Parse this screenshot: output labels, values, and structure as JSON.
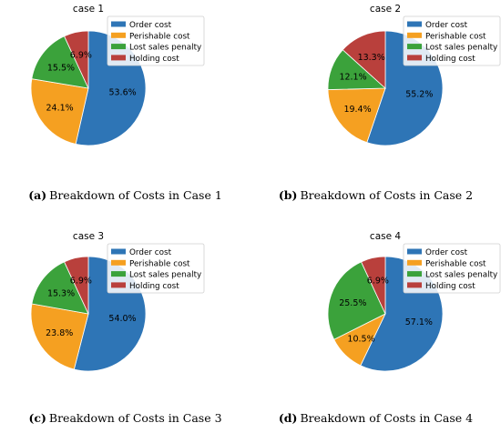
{
  "legend": [
    "Order cost",
    "Perishable cost",
    "Lost sales penalty",
    "Holding cost"
  ],
  "colors": {
    "order": "#2e75b6",
    "perishable": "#f5a021",
    "lost_sales": "#3ba23b",
    "holding": "#b9403c"
  },
  "chart_data": [
    {
      "type": "pie",
      "title": "case 1",
      "labels": [
        "Order cost",
        "Perishable cost",
        "Lost sales penalty",
        "Holding cost"
      ],
      "values": [
        53.6,
        24.1,
        15.5,
        6.9
      ],
      "value_labels": [
        "53.6%",
        "24.1%",
        "15.5%",
        "6.9%"
      ],
      "legend_position": "top-right"
    },
    {
      "type": "pie",
      "title": "case 2",
      "labels": [
        "Order cost",
        "Perishable cost",
        "Lost sales penalty",
        "Holding cost"
      ],
      "values": [
        55.2,
        19.4,
        12.1,
        13.3
      ],
      "value_labels": [
        "55.2%",
        "19.4%",
        "12.1%",
        "13.3%"
      ],
      "legend_position": "top-right"
    },
    {
      "type": "pie",
      "title": "case 3",
      "labels": [
        "Order cost",
        "Perishable cost",
        "Lost sales penalty",
        "Holding cost"
      ],
      "values": [
        54.0,
        23.8,
        15.3,
        6.9
      ],
      "value_labels": [
        "54.0%",
        "23.8%",
        "15.3%",
        "6.9%"
      ],
      "legend_position": "top-right"
    },
    {
      "type": "pie",
      "title": "case 4",
      "labels": [
        "Order cost",
        "Perishable cost",
        "Lost sales penalty",
        "Holding cost"
      ],
      "values": [
        57.1,
        10.5,
        25.5,
        6.9
      ],
      "value_labels": [
        "57.1%",
        "10.5%",
        "25.5%",
        "6.9%"
      ],
      "legend_position": "top-right"
    }
  ],
  "captions": [
    {
      "tag": "(a)",
      "text": "Breakdown of Costs in Case 1"
    },
    {
      "tag": "(b)",
      "text": "Breakdown of Costs in Case 2"
    },
    {
      "tag": "(c)",
      "text": "Breakdown of Costs in Case 3"
    },
    {
      "tag": "(d)",
      "text": "Breakdown of Costs in Case 4"
    }
  ]
}
